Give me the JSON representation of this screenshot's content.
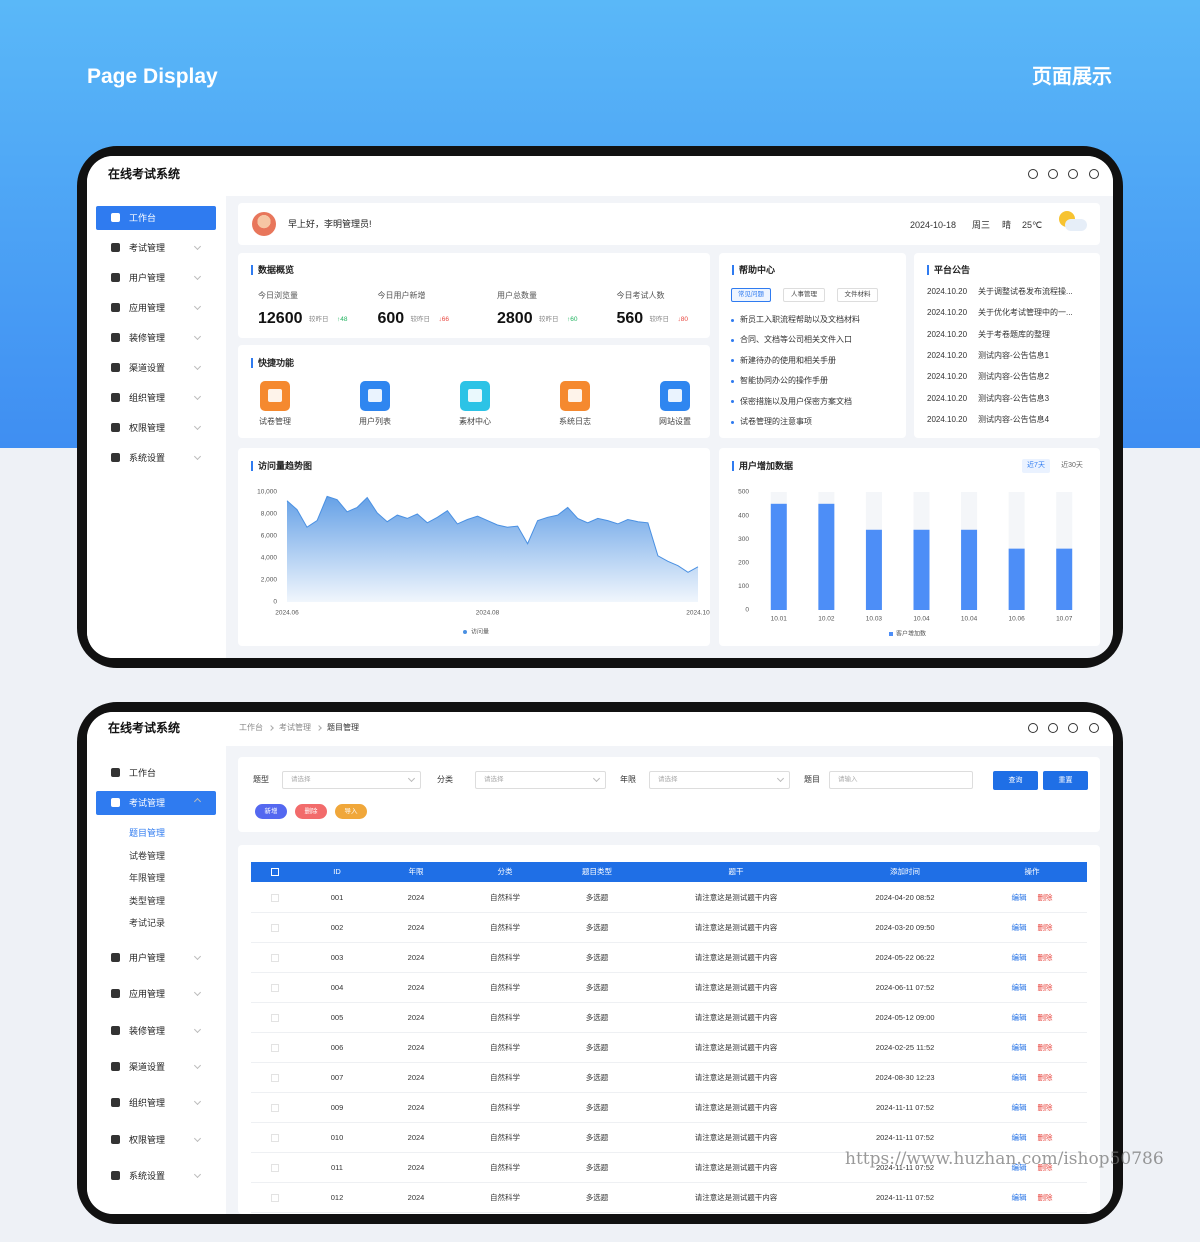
{
  "header": {
    "title": "Page Display",
    "title_cn": "页面展示"
  },
  "app_title": "在线考试系统",
  "menu": [
    "工作台",
    "考试管理",
    "用户管理",
    "应用管理",
    "装修管理",
    "渠道设置",
    "组织管理",
    "权限管理",
    "系统设置"
  ],
  "screen1": {
    "greeting": "早上好，李明管理员!",
    "date": "2024-10-18",
    "weekday": "周三",
    "weather": "晴",
    "temperature": "25℃",
    "overview": {
      "title": "数据概览",
      "items": [
        {
          "label": "今日浏览量",
          "value": 12600,
          "compare": "较昨日",
          "change": "↑48"
        },
        {
          "label": "今日用户新增",
          "value": 600,
          "compare": "较昨日",
          "change": "↓66"
        },
        {
          "label": "用户总数量",
          "value": 2800,
          "compare": "较昨日",
          "change": "↑60"
        },
        {
          "label": "今日考试人数",
          "value": 560,
          "compare": "较昨日",
          "change": "↓80"
        }
      ]
    },
    "quick": {
      "title": "快捷功能",
      "items": [
        "试卷管理",
        "用户列表",
        "素材中心",
        "系统日志",
        "网站设置"
      ]
    },
    "help": {
      "title": "帮助中心",
      "tabs": [
        "常见问题",
        "人事管理",
        "文件材料"
      ],
      "items": [
        "新员工入职流程帮助以及文档材料",
        "合同、文档等公司相关文件入口",
        "新建待办的使用和相关手册",
        "智能协同办公的操作手册",
        "保密措施以及用户保密方案文档",
        "试卷管理的注意事项"
      ]
    },
    "notice": {
      "title": "平台公告",
      "items": [
        {
          "date": "2024.10.20",
          "text": "关于调整试卷发布流程操..."
        },
        {
          "date": "2024.10.20",
          "text": "关于优化考试管理中的一..."
        },
        {
          "date": "2024.10.20",
          "text": "关于考卷题库的整理"
        },
        {
          "date": "2024.10.20",
          "text": "测试内容-公告信息1"
        },
        {
          "date": "2024.10.20",
          "text": "测试内容-公告信息2"
        },
        {
          "date": "2024.10.20",
          "text": "测试内容-公告信息3"
        },
        {
          "date": "2024.10.20",
          "text": "测试内容-公告信息4"
        }
      ]
    },
    "growth_ranges": [
      "近7天",
      "近30天"
    ]
  },
  "chart_data": [
    {
      "type": "area",
      "title": "访问量趋势图",
      "categories": [
        "2024.06",
        null,
        null,
        null,
        null,
        null,
        null,
        null,
        null,
        null,
        null,
        null,
        null,
        null,
        null,
        null,
        null,
        null,
        null,
        null,
        "2024.08",
        null,
        null,
        null,
        null,
        null,
        null,
        null,
        null,
        null,
        null,
        null,
        null,
        null,
        null,
        null,
        null,
        null,
        null,
        null,
        null,
        "2024.10"
      ],
      "series": [
        {
          "name": "访问量",
          "color": "#4a90e2",
          "values": [
            9200,
            8400,
            6800,
            7400,
            9600,
            9300,
            8200,
            8600,
            9500,
            8100,
            7300,
            7900,
            7600,
            8000,
            7200,
            7700,
            8300,
            7100,
            7500,
            7800,
            7400,
            7000,
            6800,
            6900,
            5300,
            7400,
            7700,
            7900,
            8600,
            7600,
            7200,
            7600,
            7400,
            7100,
            7500,
            7300,
            7200,
            4200,
            3700,
            3300,
            2700,
            3200
          ]
        }
      ],
      "ylim": [
        0,
        10000
      ],
      "yticks": [
        0,
        {
          "value": 2000,
          "label": "2,000"
        },
        {
          "value": 4000,
          "label": "4,000"
        },
        {
          "value": 6000,
          "label": "6,000"
        },
        {
          "value": 8000,
          "label": "8,000"
        },
        {
          "value": 10000,
          "label": "10,000"
        }
      ],
      "grid": false
    },
    {
      "type": "bar",
      "title": "用户增加数据",
      "categories": [
        "10.01",
        "10.02",
        "10.03",
        "10.04",
        "10.04",
        "10.06",
        "10.07"
      ],
      "series": [
        {
          "name": "客户增加数",
          "color": "#4d8ef7",
          "values": [
            450,
            450,
            340,
            340,
            340,
            260,
            260
          ]
        }
      ],
      "ylim": [
        0,
        500
      ],
      "yticks": [
        0,
        100,
        200,
        300,
        400,
        500
      ],
      "grid": false
    }
  ],
  "screen2": {
    "breadcrumb": [
      "工作台",
      "考试管理",
      "题目管理"
    ],
    "submenu": [
      "题目管理",
      "试卷管理",
      "年限管理",
      "类型管理",
      "考试记录"
    ],
    "filters": [
      {
        "label": "题型",
        "placeholder": "请选择"
      },
      {
        "label": "分类",
        "placeholder": "请选择"
      },
      {
        "label": "年限",
        "placeholder": "请选择"
      },
      {
        "label": "题目",
        "placeholder": "请输入"
      }
    ],
    "search": "查询",
    "reset": "重置",
    "actions": [
      "新增",
      "删除",
      "导入"
    ],
    "table": {
      "columns": [
        "ID",
        "年限",
        "分类",
        "题目类型",
        "题干",
        "添加时间",
        "操作"
      ],
      "rows": [
        [
          "001",
          "2024",
          "自然科学",
          "多选题",
          "请注意这是测试题干内容",
          "2024-04-20 08:52"
        ],
        [
          "002",
          "2024",
          "自然科学",
          "多选题",
          "请注意这是测试题干内容",
          "2024-03-20 09:50"
        ],
        [
          "003",
          "2024",
          "自然科学",
          "多选题",
          "请注意这是测试题干内容",
          "2024-05-22 06:22"
        ],
        [
          "004",
          "2024",
          "自然科学",
          "多选题",
          "请注意这是测试题干内容",
          "2024-06-11 07:52"
        ],
        [
          "005",
          "2024",
          "自然科学",
          "多选题",
          "请注意这是测试题干内容",
          "2024-05-12 09:00"
        ],
        [
          "006",
          "2024",
          "自然科学",
          "多选题",
          "请注意这是测试题干内容",
          "2024-02-25 11:52"
        ],
        [
          "007",
          "2024",
          "自然科学",
          "多选题",
          "请注意这是测试题干内容",
          "2024-08-30 12:23"
        ],
        [
          "009",
          "2024",
          "自然科学",
          "多选题",
          "请注意这是测试题干内容",
          "2024-11-11 07:52"
        ],
        [
          "010",
          "2024",
          "自然科学",
          "多选题",
          "请注意这是测试题干内容",
          "2024-11-11 07:52"
        ],
        [
          "011",
          "2024",
          "自然科学",
          "多选题",
          "请注意这是测试题干内容",
          "2024-11-11 07:52"
        ],
        [
          "012",
          "2024",
          "自然科学",
          "多选题",
          "请注意这是测试题干内容",
          "2024-11-11 07:52"
        ]
      ],
      "row_actions": [
        "编辑",
        "删除"
      ]
    }
  },
  "watermark": "https://www.huzhan.com/ishop50786"
}
